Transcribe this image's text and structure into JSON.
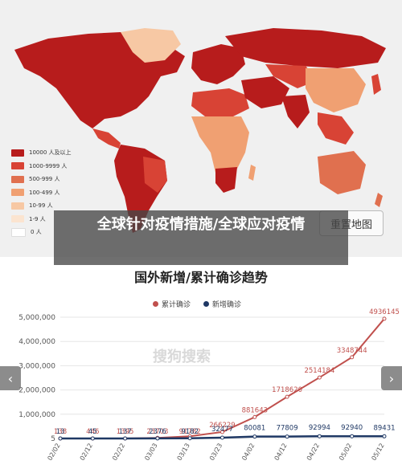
{
  "map": {
    "legend": [
      {
        "label": "10000 人及以上",
        "color": "#b71c1c"
      },
      {
        "label": "1000-9999 人",
        "color": "#d84335"
      },
      {
        "label": "500-999 人",
        "color": "#e0704f"
      },
      {
        "label": "100-499 人",
        "color": "#f0a072"
      },
      {
        "label": "10-99 人",
        "color": "#f7c8a4"
      },
      {
        "label": "1-9 人",
        "color": "#fbe4d0"
      },
      {
        "label": "0 人",
        "color": "#ffffff"
      }
    ],
    "reset_label": "重置地图"
  },
  "overlay_title": "全球针对疫情措施/全球应对疫情",
  "chart_title": "国外新增/累计确诊趋势",
  "watermark": "搜狗搜索",
  "nav": {
    "left": "‹",
    "right": "›"
  },
  "chart_data": {
    "type": "line",
    "x": [
      "02/02",
      "02/12",
      "02/22",
      "03/03",
      "03/13",
      "03/23",
      "04/02",
      "04/12",
      "04/22",
      "05/02",
      "05/12"
    ],
    "ylim": [
      0,
      5000000
    ],
    "yticks": [
      "5,000,000",
      "4,000,000",
      "3,000,000",
      "2,000,000",
      "1,000,000",
      "5"
    ],
    "series": [
      {
        "name": "累计确诊",
        "color": "#c0504d",
        "values": [
          138,
          446,
          1395,
          23703,
          91782,
          266229,
          881643,
          1718620,
          2514184,
          3348744,
          4936145
        ],
        "labels": [
          "138",
          "446",
          "1395",
          "23703",
          "91782",
          "266229",
          "881643",
          "1718620",
          "2514184",
          "3348744",
          "4936145"
        ]
      },
      {
        "name": "新增确诊",
        "color": "#1f3864",
        "values": [
          13,
          45,
          137,
          2376,
          9182,
          32477,
          80081,
          77809,
          92994,
          92940,
          89431
        ],
        "labels": [
          "13",
          "45",
          "137",
          "2376",
          "9182",
          "32477",
          "80081",
          "77809",
          "92994",
          "92940",
          "89431"
        ]
      }
    ]
  }
}
